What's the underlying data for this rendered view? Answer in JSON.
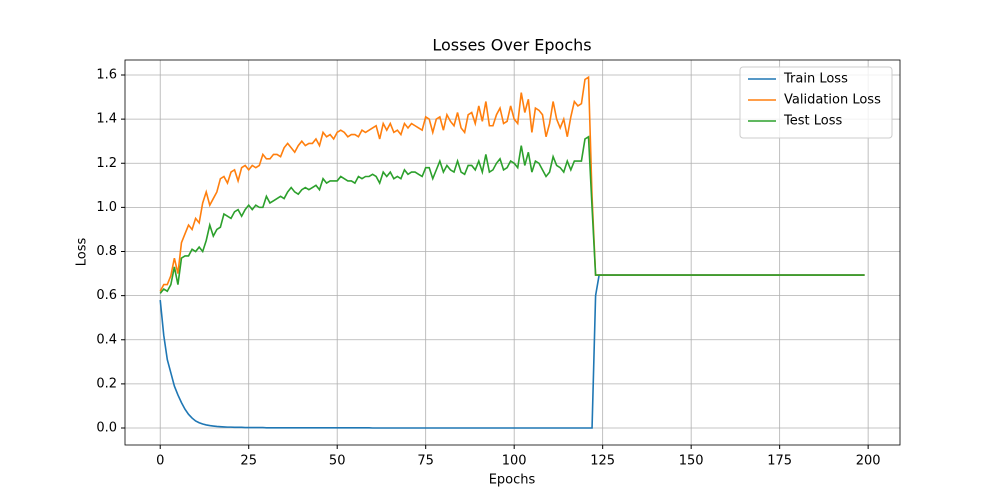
{
  "chart_data": {
    "type": "line",
    "title": "Losses Over Epochs",
    "x_label": "Epochs",
    "y_label": "Loss",
    "x": [
      0,
      1,
      2,
      3,
      4,
      5,
      6,
      7,
      8,
      9,
      10,
      11,
      12,
      13,
      14,
      15,
      16,
      17,
      18,
      19,
      20,
      21,
      22,
      23,
      24,
      25,
      26,
      27,
      28,
      29,
      30,
      31,
      32,
      33,
      34,
      35,
      36,
      37,
      38,
      39,
      40,
      41,
      42,
      43,
      44,
      45,
      46,
      47,
      48,
      49,
      50,
      51,
      52,
      53,
      54,
      55,
      56,
      57,
      58,
      59,
      60,
      61,
      62,
      63,
      64,
      65,
      66,
      67,
      68,
      69,
      70,
      71,
      72,
      73,
      74,
      75,
      76,
      77,
      78,
      79,
      80,
      81,
      82,
      83,
      84,
      85,
      86,
      87,
      88,
      89,
      90,
      91,
      92,
      93,
      94,
      95,
      96,
      97,
      98,
      99,
      100,
      101,
      102,
      103,
      104,
      105,
      106,
      107,
      108,
      109,
      110,
      111,
      112,
      113,
      114,
      115,
      116,
      117,
      118,
      119,
      120,
      121,
      122,
      123,
      124,
      125,
      199
    ],
    "series": [
      {
        "name": "Train Loss",
        "color": "#1f77b4",
        "values": [
          0.58,
          0.42,
          0.31,
          0.25,
          0.19,
          0.15,
          0.115,
          0.085,
          0.062,
          0.045,
          0.032,
          0.024,
          0.018,
          0.014,
          0.011,
          0.009,
          0.007,
          0.006,
          0.005,
          0.004,
          0.004,
          0.003,
          0.003,
          0.003,
          0.002,
          0.002,
          0.002,
          0.002,
          0.002,
          0.002,
          0.001,
          0.001,
          0.001,
          0.001,
          0.001,
          0.001,
          0.001,
          0.001,
          0.001,
          0.001,
          0.001,
          0.001,
          0.001,
          0.001,
          0.001,
          0.001,
          0.001,
          0.001,
          0.001,
          0.001,
          0.001,
          0.001,
          0.001,
          0.001,
          0.001,
          0.001,
          0.001,
          0.001,
          0.001,
          0.001,
          0,
          0,
          0,
          0,
          0,
          0,
          0,
          0,
          0,
          0,
          0,
          0,
          0,
          0,
          0,
          0,
          0,
          0,
          0,
          0,
          0,
          0,
          0,
          0,
          0,
          0,
          0,
          0,
          0,
          0,
          0,
          0,
          0,
          0,
          0,
          0,
          0,
          0,
          0,
          0,
          0,
          0,
          0,
          0,
          0,
          0,
          0,
          0,
          0,
          0,
          0,
          0,
          0,
          0,
          0,
          0,
          0,
          0,
          0,
          0,
          0,
          0,
          0,
          0.6,
          0.693,
          0.693,
          0.693
        ]
      },
      {
        "name": "Validation Loss",
        "color": "#ff7f0e",
        "values": [
          0.62,
          0.65,
          0.65,
          0.69,
          0.77,
          0.7,
          0.84,
          0.88,
          0.92,
          0.9,
          0.95,
          0.93,
          1.02,
          1.07,
          1.01,
          1.04,
          1.07,
          1.13,
          1.14,
          1.11,
          1.16,
          1.17,
          1.12,
          1.18,
          1.19,
          1.17,
          1.19,
          1.18,
          1.19,
          1.24,
          1.22,
          1.22,
          1.24,
          1.24,
          1.23,
          1.27,
          1.29,
          1.27,
          1.25,
          1.28,
          1.3,
          1.28,
          1.29,
          1.29,
          1.31,
          1.28,
          1.34,
          1.32,
          1.33,
          1.31,
          1.34,
          1.35,
          1.34,
          1.32,
          1.33,
          1.33,
          1.32,
          1.35,
          1.34,
          1.35,
          1.36,
          1.37,
          1.31,
          1.38,
          1.35,
          1.38,
          1.34,
          1.35,
          1.33,
          1.38,
          1.36,
          1.38,
          1.37,
          1.36,
          1.35,
          1.41,
          1.4,
          1.34,
          1.4,
          1.41,
          1.35,
          1.42,
          1.39,
          1.37,
          1.43,
          1.36,
          1.34,
          1.42,
          1.43,
          1.38,
          1.46,
          1.39,
          1.48,
          1.37,
          1.37,
          1.42,
          1.45,
          1.38,
          1.39,
          1.46,
          1.4,
          1.38,
          1.52,
          1.43,
          1.49,
          1.34,
          1.45,
          1.44,
          1.42,
          1.32,
          1.38,
          1.48,
          1.4,
          1.36,
          1.4,
          1.32,
          1.41,
          1.48,
          1.46,
          1.47,
          1.58,
          1.59,
          1.05,
          0.693,
          0.693,
          0.693,
          0.693
        ]
      },
      {
        "name": "Test Loss",
        "color": "#2ca02c",
        "values": [
          0.61,
          0.63,
          0.62,
          0.65,
          0.73,
          0.65,
          0.77,
          0.78,
          0.78,
          0.81,
          0.8,
          0.82,
          0.8,
          0.85,
          0.92,
          0.87,
          0.9,
          0.91,
          0.97,
          0.96,
          0.95,
          0.98,
          0.99,
          0.96,
          0.99,
          1.01,
          0.99,
          1.01,
          1.0,
          1.0,
          1.05,
          1.02,
          1.03,
          1.04,
          1.05,
          1.04,
          1.07,
          1.09,
          1.07,
          1.06,
          1.08,
          1.09,
          1.08,
          1.09,
          1.1,
          1.08,
          1.13,
          1.11,
          1.12,
          1.12,
          1.12,
          1.14,
          1.13,
          1.12,
          1.12,
          1.11,
          1.14,
          1.13,
          1.14,
          1.14,
          1.15,
          1.14,
          1.11,
          1.16,
          1.14,
          1.16,
          1.13,
          1.14,
          1.13,
          1.17,
          1.15,
          1.16,
          1.16,
          1.15,
          1.14,
          1.18,
          1.18,
          1.13,
          1.17,
          1.21,
          1.16,
          1.19,
          1.17,
          1.16,
          1.21,
          1.16,
          1.15,
          1.19,
          1.19,
          1.17,
          1.21,
          1.16,
          1.24,
          1.16,
          1.17,
          1.2,
          1.22,
          1.17,
          1.18,
          1.21,
          1.2,
          1.18,
          1.28,
          1.19,
          1.25,
          1.16,
          1.21,
          1.2,
          1.17,
          1.14,
          1.16,
          1.23,
          1.19,
          1.18,
          1.16,
          1.21,
          1.17,
          1.21,
          1.21,
          1.21,
          1.31,
          1.32,
          1.0,
          0.693,
          0.693,
          0.693,
          0.693
        ]
      }
    ],
    "xlim": [
      -9.95,
      209
    ],
    "xticks": [
      0,
      25,
      50,
      75,
      100,
      125,
      150,
      175,
      200
    ],
    "ylim": [
      -0.077,
      1.668
    ],
    "yticks": [
      {
        "value": 0,
        "label": "0.0"
      },
      {
        "value": 0.2,
        "label": "0.2"
      },
      {
        "value": 0.4,
        "label": "0.4"
      },
      {
        "value": 0.6,
        "label": "0.6"
      },
      {
        "value": 0.8,
        "label": "0.8"
      },
      {
        "value": 1,
        "label": "1.0"
      },
      {
        "value": 1.2,
        "label": "1.2"
      },
      {
        "value": 1.4,
        "label": "1.4"
      },
      {
        "value": 1.6,
        "label": "1.6"
      }
    ],
    "grid": true,
    "legend": "upper right"
  }
}
